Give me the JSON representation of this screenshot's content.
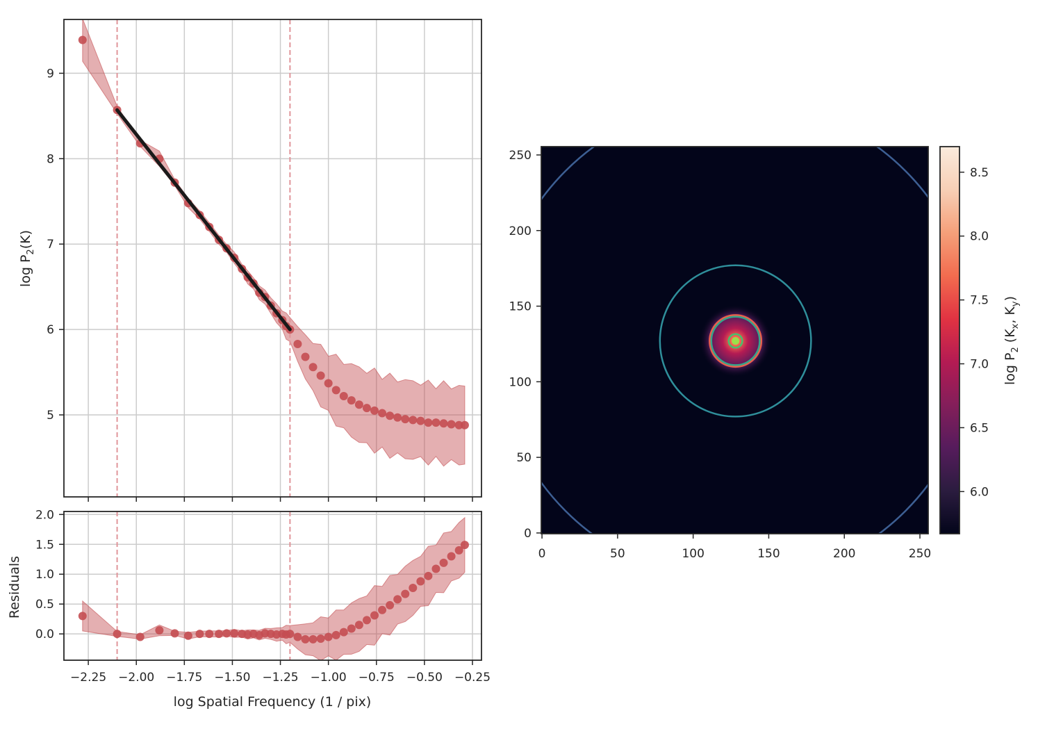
{
  "chart_data": [
    {
      "type": "scatter",
      "panel": "top",
      "ylabel": "log P",
      "ylabel_sub": "2",
      "ylabel_tail": "(K)",
      "xlim": [
        -2.377,
        -0.203
      ],
      "ylim": [
        4.04,
        9.63
      ],
      "xticks": [
        -2.25,
        -2.0,
        -1.75,
        -1.5,
        -1.25,
        -1.0,
        -0.75,
        -0.5,
        -0.25
      ],
      "yticks": [
        5,
        6,
        7,
        8,
        9
      ],
      "ytick_labels": [
        "5",
        "6",
        "7",
        "8",
        "9"
      ],
      "grid": true,
      "x": [
        -2.28,
        -2.1,
        -1.98,
        -1.88,
        -1.8,
        -1.73,
        -1.67,
        -1.62,
        -1.57,
        -1.53,
        -1.49,
        -1.45,
        -1.42,
        -1.39,
        -1.36,
        -1.33,
        -1.3,
        -1.27,
        -1.24,
        -1.22,
        -1.2,
        -1.16,
        -1.12,
        -1.08,
        -1.04,
        -1.0,
        -0.96,
        -0.92,
        -0.88,
        -0.84,
        -0.8,
        -0.76,
        -0.72,
        -0.68,
        -0.64,
        -0.6,
        -0.56,
        -0.52,
        -0.48,
        -0.44,
        -0.4,
        -0.36,
        -0.32,
        -0.29
      ],
      "y": [
        9.39,
        8.57,
        8.18,
        8.0,
        7.72,
        7.48,
        7.34,
        7.2,
        7.05,
        6.95,
        6.84,
        6.71,
        6.61,
        6.54,
        6.43,
        6.38,
        6.28,
        6.19,
        6.11,
        6.04,
        6.0,
        5.83,
        5.68,
        5.56,
        5.46,
        5.37,
        5.29,
        5.22,
        5.17,
        5.12,
        5.08,
        5.05,
        5.02,
        4.99,
        4.97,
        4.95,
        4.94,
        4.93,
        4.91,
        4.91,
        4.9,
        4.89,
        4.88,
        4.88
      ],
      "error": [
        0.25,
        0.04,
        0.04,
        0.08,
        0.04,
        0.05,
        0.05,
        0.05,
        0.05,
        0.05,
        0.06,
        0.06,
        0.07,
        0.07,
        0.08,
        0.08,
        0.1,
        0.1,
        0.12,
        0.14,
        0.15,
        0.2,
        0.25,
        0.3,
        0.33,
        0.36,
        0.38,
        0.4,
        0.42,
        0.43,
        0.44,
        0.45,
        0.45,
        0.45,
        0.45,
        0.45,
        0.45,
        0.45,
        0.45,
        0.45,
        0.45,
        0.45,
        0.45,
        0.45
      ],
      "fit_line": {
        "x": [
          -2.1,
          -1.2
        ],
        "y": [
          8.57,
          6.0
        ]
      },
      "vlines": [
        -2.1,
        -1.2
      ],
      "colors": {
        "points": "#c44e52",
        "band": "#c44e52",
        "fit": "#1a1a1a",
        "vline": "#e0959a"
      }
    },
    {
      "type": "scatter",
      "panel": "residuals",
      "xlabel": "log Spatial Frequency (1 / pix)",
      "ylabel": "Residuals",
      "xlim": [
        -2.377,
        -0.203
      ],
      "ylim": [
        -0.44,
        2.05
      ],
      "xticks": [
        -2.25,
        -2.0,
        -1.75,
        -1.5,
        -1.25,
        -1.0,
        -0.75,
        -0.5,
        -0.25
      ],
      "xtick_labels": [
        "−2.25",
        "−2.00",
        "−1.75",
        "−1.50",
        "−1.25",
        "−1.00",
        "−0.75",
        "−0.50",
        "−0.25"
      ],
      "yticks": [
        0.0,
        0.5,
        1.0,
        1.5,
        2.0
      ],
      "ytick_labels": [
        "0.0",
        "0.5",
        "1.0",
        "1.5",
        "2.0"
      ],
      "grid": true,
      "residuals": [
        0.3,
        0.0,
        -0.05,
        0.06,
        0.01,
        -0.03,
        0.0,
        0.0,
        0.0,
        0.01,
        0.01,
        0.0,
        -0.01,
        0.0,
        -0.02,
        0.01,
        0.0,
        -0.01,
        0.0,
        -0.01,
        0.0,
        -0.05,
        -0.09,
        -0.09,
        -0.08,
        -0.05,
        -0.02,
        0.03,
        0.09,
        0.15,
        0.23,
        0.31,
        0.4,
        0.48,
        0.58,
        0.67,
        0.77,
        0.88,
        0.97,
        1.09,
        1.19,
        1.3,
        1.4,
        1.49
      ],
      "vlines": [
        -2.1,
        -1.2
      ]
    },
    {
      "type": "heatmap",
      "panel": "image",
      "xlim": [
        -0.5,
        255.5
      ],
      "ylim": [
        -0.5,
        255.5
      ],
      "xticks": [
        0,
        50,
        100,
        150,
        200,
        250
      ],
      "yticks": [
        0,
        50,
        100,
        150,
        200,
        250
      ],
      "center": [
        128,
        127
      ],
      "contours": [
        {
          "radius": 159,
          "color": "#3d5f93"
        },
        {
          "radius": 50,
          "color": "#2f8f9b"
        },
        {
          "radius": 16,
          "color": "#36a58a"
        },
        {
          "radius": 4.5,
          "color": "#47c16d"
        }
      ],
      "background": "#03051a",
      "colorbar": {
        "label": "log P",
        "label_sub": "2",
        "label_tail": "(K",
        "label_kx": "x",
        "label_ky": "y",
        "range": [
          5.67,
          8.7
        ],
        "ticks": [
          6.0,
          6.5,
          7.0,
          7.5,
          8.0,
          8.5
        ],
        "tick_labels": [
          "6.0",
          "6.5",
          "7.0",
          "7.5",
          "8.0",
          "8.5"
        ],
        "colormap": [
          "#03051a",
          "#2b1c3f",
          "#561c5c",
          "#841e5a",
          "#b41b53",
          "#e13342",
          "#f26c4f",
          "#f5a07a",
          "#f7cfb6",
          "#faebdd"
        ]
      }
    }
  ]
}
